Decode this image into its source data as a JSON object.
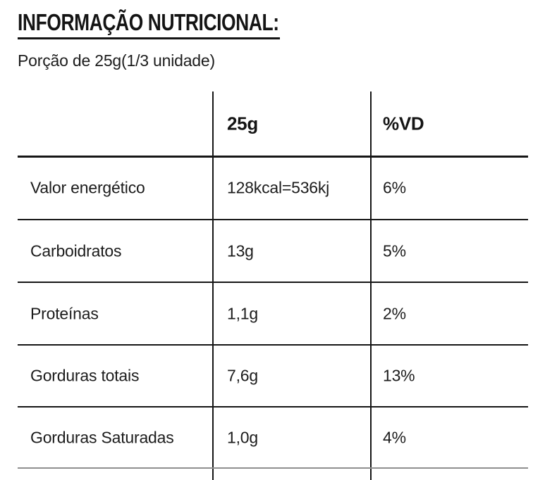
{
  "title": "INFORMAÇÃO NUTRICIONAL:",
  "portion": "Porção de 25g(1/3 unidade)",
  "table": {
    "col_headers": {
      "amount": "25g",
      "daily_value": "%VD"
    },
    "rows": [
      {
        "label": "Valor energético",
        "amount": "128kcal=536kj",
        "daily_value": "6%"
      },
      {
        "label": "Carboidratos",
        "amount": "13g",
        "daily_value": "5%"
      },
      {
        "label": "Proteínas",
        "amount": "1,1g",
        "daily_value": "2%"
      },
      {
        "label": "Gorduras totais",
        "amount": "7,6g",
        "daily_value": "13%"
      },
      {
        "label": "Gorduras Saturadas",
        "amount": "1,0g",
        "daily_value": "4%"
      }
    ]
  },
  "colors": {
    "text": "#1c1c1c",
    "line": "#161616",
    "muted_line": "#8f8f8f"
  }
}
